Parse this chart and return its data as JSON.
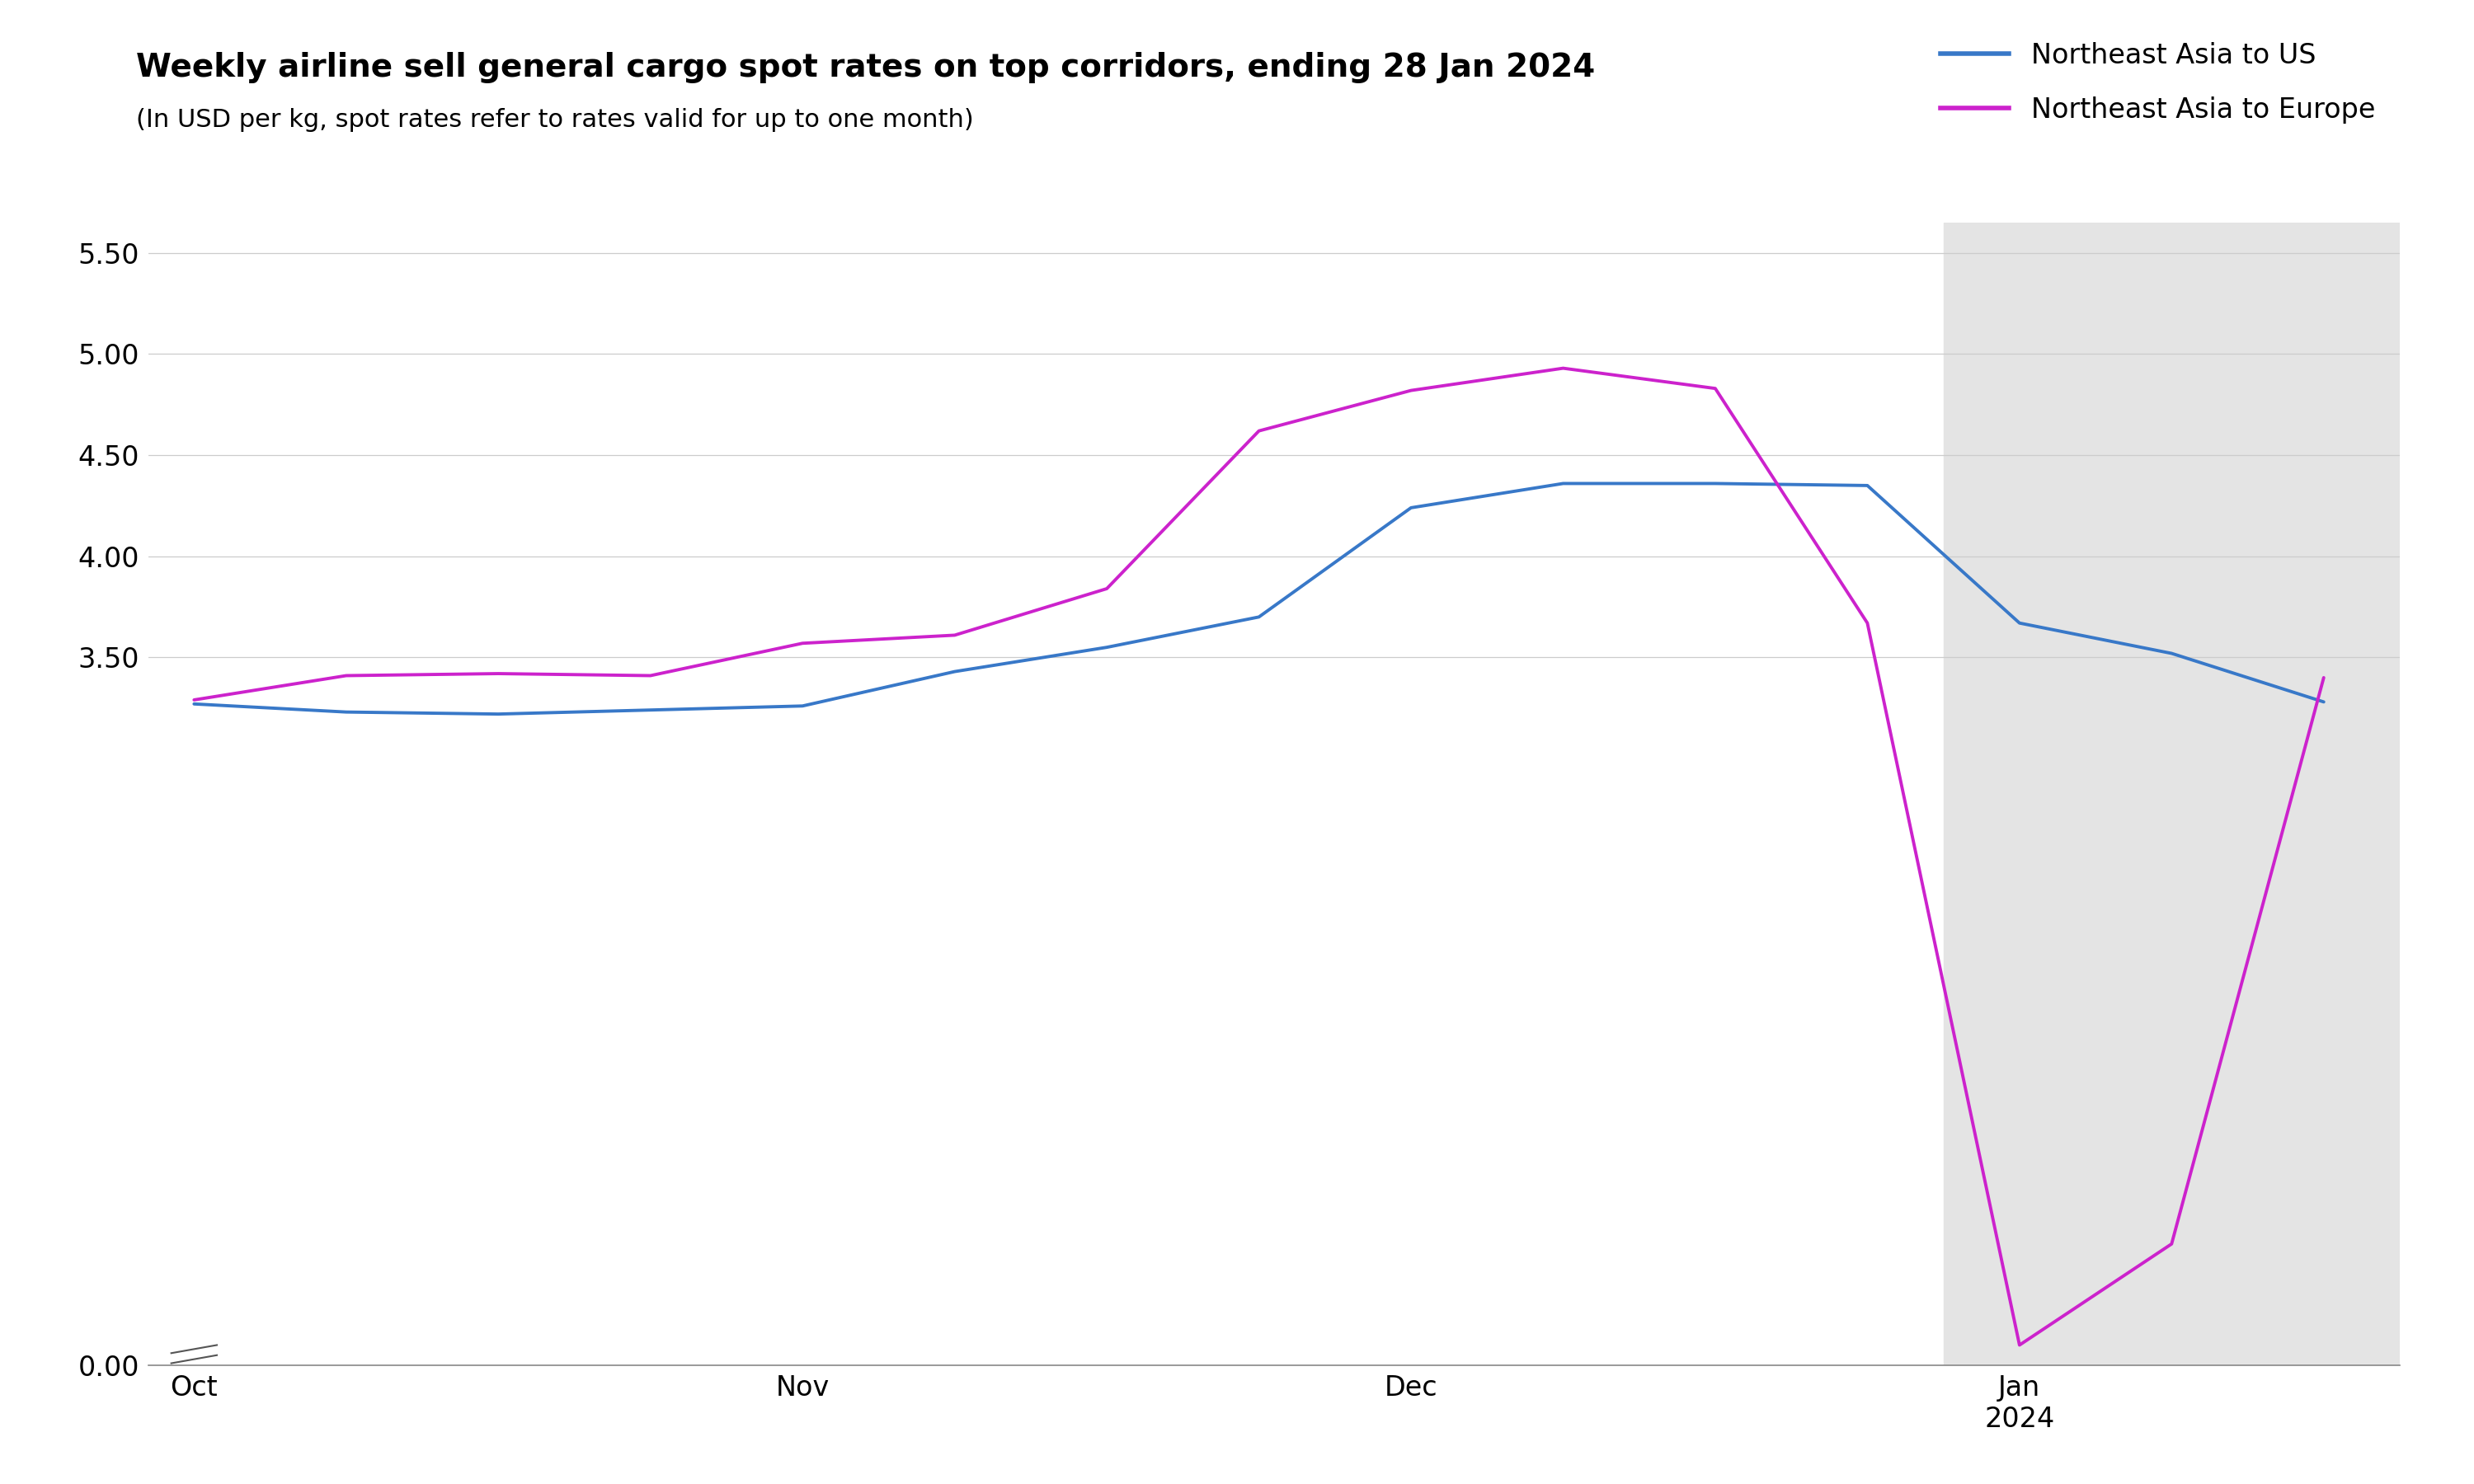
{
  "title": "Weekly airline sell general cargo spot rates on top corridors, ending 28 Jan 2024",
  "subtitle": "(In USD per kg, spot rates refer to rates valid for up to one month)",
  "legend_labels": [
    "Northeast Asia to US",
    "Northeast Asia to Europe"
  ],
  "line_colors": [
    "#3878c8",
    "#cc22cc"
  ],
  "background_color": "#ffffff",
  "shade_color": "#e4e4e4",
  "us_x": [
    0,
    1,
    2,
    3,
    4,
    5,
    6,
    7,
    8,
    9,
    10,
    11,
    12,
    13,
    14
  ],
  "us_y": [
    3.27,
    3.23,
    3.22,
    3.24,
    3.26,
    3.43,
    3.55,
    3.7,
    4.24,
    4.36,
    4.36,
    4.35,
    3.67,
    3.52,
    3.28
  ],
  "eu_x": [
    0,
    1,
    2,
    3,
    4,
    5,
    6,
    7,
    8,
    9,
    10,
    11,
    12,
    13,
    14
  ],
  "eu_y": [
    3.29,
    3.41,
    3.42,
    3.41,
    3.57,
    3.61,
    3.84,
    4.62,
    4.82,
    4.93,
    4.83,
    3.67,
    0.1,
    0.6,
    3.4
  ],
  "xlim": [
    -0.3,
    14.5
  ],
  "ylim": [
    0,
    5.65
  ],
  "ytick_vals": [
    0.0,
    0.5,
    1.0,
    1.5,
    2.0,
    2.5,
    3.0,
    3.5,
    4.0,
    4.5,
    5.0,
    5.5
  ],
  "ytick_labels": [
    "0.00",
    "",
    "",
    "",
    "",
    "",
    "",
    "3.50",
    "4.00",
    "4.50",
    "5.00",
    "5.50"
  ],
  "xtick_pos": [
    0,
    4,
    8,
    12
  ],
  "xtick_labels": [
    "Oct",
    "Nov",
    "Dec",
    "Jan\n2024"
  ],
  "shade_xstart": 11.5,
  "shade_xend": 14.5,
  "line_width": 2.8,
  "title_fontsize": 28,
  "subtitle_fontsize": 22,
  "tick_fontsize": 24,
  "legend_fontsize": 24
}
